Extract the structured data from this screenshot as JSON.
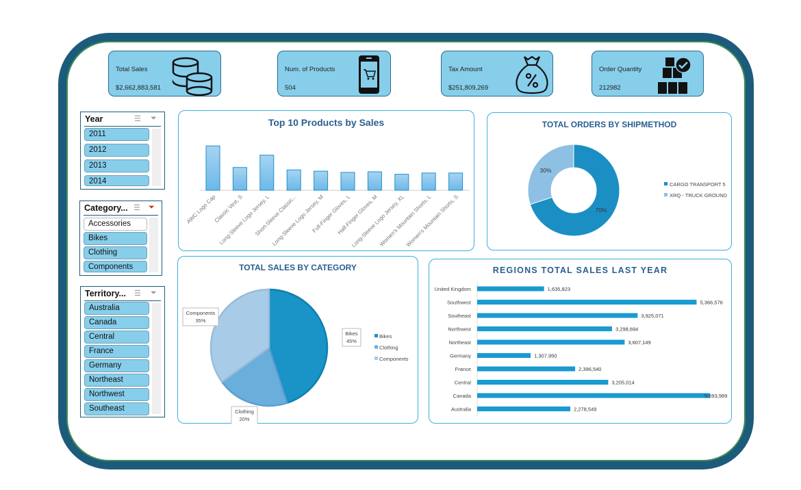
{
  "kpis": [
    {
      "label": "Total Sales",
      "value": "$2,662,883,581",
      "icon": "coins-icon"
    },
    {
      "label": "Num. of Products",
      "value": "504",
      "icon": "phone-cart-icon"
    },
    {
      "label": "Tax Amount",
      "value": "$251,809,269",
      "icon": "money-bag-percent-icon"
    },
    {
      "label": "Order Quantity",
      "value": "212982",
      "icon": "boxes-check-icon"
    }
  ],
  "slicers": {
    "year": {
      "title": "Year",
      "items": [
        "2011",
        "2012",
        "2013",
        "2014"
      ]
    },
    "category": {
      "title": "Category...",
      "items": [
        "Accessories",
        "Bikes",
        "Clothing",
        "Components"
      ]
    },
    "territory": {
      "title": "Territory...",
      "items": [
        "Australia",
        "Canada",
        "Central",
        "France",
        "Germany",
        "Northeast",
        "Northwest",
        "Southeast"
      ]
    }
  },
  "colors": {
    "accent": "#1a93c6",
    "kpi_bg": "#87ceeb",
    "title": "#2a5e90"
  },
  "chart_data": [
    {
      "type": "bar",
      "title": "Top 10 Products by Sales",
      "note": "no value axis shown; values are relative estimates",
      "categories": [
        "AWC Logo Cap",
        "Classic Vest, S",
        "Long-Sleeve Logo Jersey, L",
        "Short-Sleeve Classic...",
        "Long-Sleeve Logo Jersey, M",
        "Full-Finger Gloves, L",
        "Half-Finger Gloves, M",
        "Long-Sleeve Logo Jersey, XL",
        "Women's Mountain Shorts, L",
        "Women's Mountain Shorts, S"
      ],
      "values": [
        72,
        37,
        57,
        33,
        31,
        29,
        30,
        26,
        28,
        28
      ]
    },
    {
      "type": "pie",
      "title": "TOTAL ORDERS BY SHIPMETHOD",
      "donut": true,
      "categories": [
        "CARGO TRANSPORT 5",
        "XRQ - TRUCK GROUND"
      ],
      "values": [
        70,
        30
      ],
      "labels": [
        "70%",
        "30%"
      ],
      "colors": [
        "#1b8fc4",
        "#8ec0e4"
      ],
      "legend": "right"
    },
    {
      "type": "pie",
      "title": "TOTAL SALES  BY CATEGORY",
      "categories": [
        "Bikes",
        "Clothing",
        "Components"
      ],
      "values": [
        45,
        20,
        35
      ],
      "labels": [
        "45%",
        "20%",
        "35%"
      ],
      "colors": [
        "#1a93c6",
        "#6aaedc",
        "#a8cce8"
      ],
      "legend": "right"
    },
    {
      "type": "bar",
      "orientation": "horizontal",
      "title": "REGIONS TOTAL SALES LAST YEAR",
      "categories": [
        "United Kingdom",
        "Southwest",
        "Southeast",
        "Northwest",
        "Northeast",
        "Germany",
        "France",
        "Central",
        "Canada",
        "Australia"
      ],
      "values": [
        1635823,
        5366576,
        3925071,
        3298694,
        3607149,
        1307950,
        2396540,
        3205014,
        5693989,
        2278549
      ],
      "labels": [
        "1,635,823",
        "5,366,576",
        "3,925,071",
        "3,298,694",
        "3,607,149",
        "1,307,950",
        "2,396,540",
        "3,205,014",
        "5,693,989",
        "2,278,549"
      ]
    }
  ]
}
